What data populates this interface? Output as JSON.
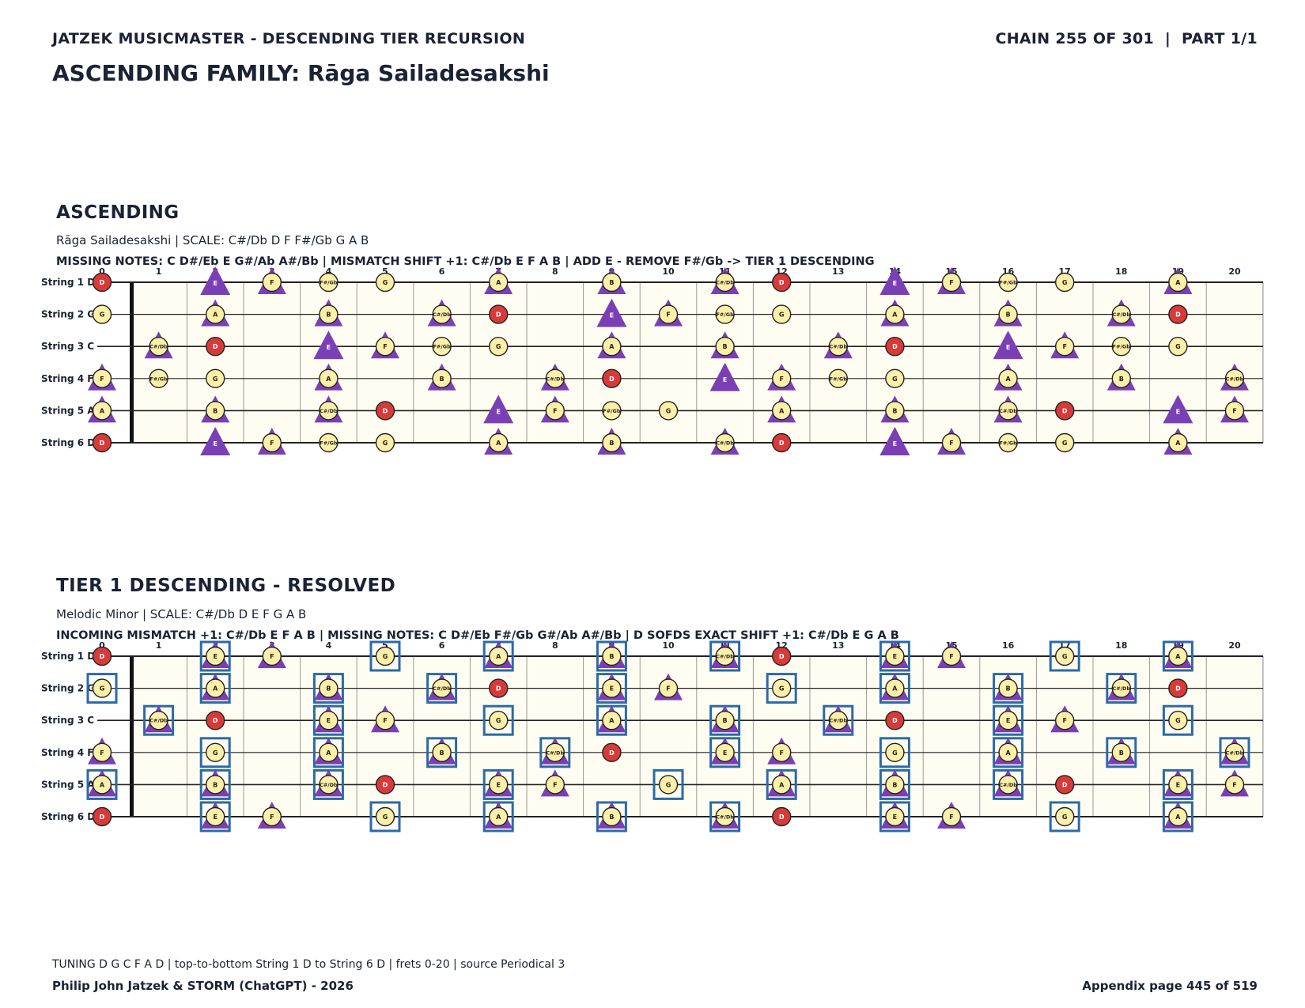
{
  "header": {
    "left": "JATZEK MUSICMASTER - DESCENDING TIER RECURSION",
    "right": "CHAIN 255 OF 301  |  PART 1/1",
    "title": "ASCENDING FAMILY: Rāga Sailadesakshi"
  },
  "strings": [
    "String 1 D",
    "String 2 G",
    "String 3 C",
    "String 4 F",
    "String 5 A",
    "String 6 D"
  ],
  "frets": [
    "0",
    "1",
    "2",
    "3",
    "4",
    "5",
    "6",
    "7",
    "8",
    "9",
    "10",
    "11",
    "12",
    "13",
    "14",
    "15",
    "16",
    "17",
    "18",
    "19",
    "20"
  ],
  "colors": {
    "note_fill": "#fcefa8",
    "root_fill": "#d83a3a",
    "triangle": "#7b3fb5",
    "box": "#2a6aa8",
    "board": "#fffdf2"
  },
  "sections": [
    {
      "title": "ASCENDING",
      "scale_line": "Rāga Sailadesakshi  |  SCALE: C#/Db D F F#/Gb G A B",
      "info_line": "MISSING NOTES: C D#/Eb E G#/Ab A#/Bb  |  MISMATCH SHIFT +1: C#/Db E F A B  |  ADD E - REMOVE F#/Gb -> TIER 1 DESCENDING",
      "rows": [
        [
          "D",
          "",
          "E",
          "F",
          "F#/Gb",
          "G",
          "",
          "A",
          "",
          "B",
          "",
          "C#/Db",
          "D",
          "",
          "E",
          "F",
          "F#/Gb",
          "G",
          "",
          "A",
          ""
        ],
        [
          "G",
          "",
          "A",
          "",
          "B",
          "",
          "C#/Db",
          "D",
          "",
          "E",
          "F",
          "F#/Gb",
          "G",
          "",
          "A",
          "",
          "B",
          "",
          "C#/Db",
          "D",
          ""
        ],
        [
          "",
          "C#/Db",
          "D",
          "",
          "E",
          "F",
          "F#/Gb",
          "G",
          "",
          "A",
          "",
          "B",
          "",
          "C#/Db",
          "D",
          "",
          "E",
          "F",
          "F#/Gb",
          "G",
          ""
        ],
        [
          "F",
          "F#/Gb",
          "G",
          "",
          "A",
          "",
          "B",
          "",
          "C#/Db",
          "D",
          "",
          "E",
          "F",
          "F#/Gb",
          "G",
          "",
          "A",
          "",
          "B",
          "",
          "C#/Db"
        ],
        [
          "A",
          "",
          "B",
          "",
          "C#/Db",
          "D",
          "",
          "E",
          "F",
          "F#/Gb",
          "G",
          "",
          "A",
          "",
          "B",
          "",
          "C#/Db",
          "D",
          "",
          "E",
          "F"
        ],
        [
          "D",
          "",
          "E",
          "F",
          "F#/Gb",
          "G",
          "",
          "A",
          "",
          "B",
          "",
          "C#/Db",
          "D",
          "",
          "E",
          "F",
          "F#/Gb",
          "G",
          "",
          "A",
          ""
        ]
      ],
      "boxed_frets": [
        [],
        [],
        [],
        [],
        [],
        []
      ]
    },
    {
      "title": "TIER 1 DESCENDING - RESOLVED",
      "scale_line": "Melodic Minor  |  SCALE: C#/Db D E F G A B",
      "info_line": "INCOMING MISMATCH +1: C#/Db E F A B  |  MISSING NOTES: C D#/Eb F#/Gb G#/Ab A#/Bb  |  D SOFDS EXACT SHIFT +1: C#/Db E G A B",
      "rows": [
        [
          "D",
          "",
          "E",
          "F",
          "",
          "G",
          "",
          "A",
          "",
          "B",
          "",
          "C#/Db",
          "D",
          "",
          "E",
          "F",
          "",
          "G",
          "",
          "A",
          ""
        ],
        [
          "G",
          "",
          "A",
          "",
          "B",
          "",
          "C#/Db",
          "D",
          "",
          "E",
          "F",
          "",
          "G",
          "",
          "A",
          "",
          "B",
          "",
          "C#/Db",
          "D",
          ""
        ],
        [
          "",
          "C#/Db",
          "D",
          "",
          "E",
          "F",
          "",
          "G",
          "",
          "A",
          "",
          "B",
          "",
          "C#/Db",
          "D",
          "",
          "E",
          "F",
          "",
          "G",
          ""
        ],
        [
          "F",
          "",
          "G",
          "",
          "A",
          "",
          "B",
          "",
          "C#/Db",
          "D",
          "",
          "E",
          "F",
          "",
          "G",
          "",
          "A",
          "",
          "B",
          "",
          "C#/Db"
        ],
        [
          "A",
          "",
          "B",
          "",
          "C#/Db",
          "D",
          "",
          "E",
          "F",
          "",
          "G",
          "",
          "A",
          "",
          "B",
          "",
          "C#/Db",
          "D",
          "",
          "E",
          "F"
        ],
        [
          "D",
          "",
          "E",
          "F",
          "",
          "G",
          "",
          "A",
          "",
          "B",
          "",
          "C#/Db",
          "D",
          "",
          "E",
          "F",
          "",
          "G",
          "",
          "A",
          ""
        ]
      ],
      "boxed_frets": [
        [
          2,
          5,
          7,
          9,
          11,
          14,
          17,
          19
        ],
        [
          0,
          2,
          4,
          6,
          9,
          12,
          14,
          16,
          18
        ],
        [
          1,
          4,
          7,
          9,
          11,
          13,
          16,
          19
        ],
        [
          2,
          4,
          6,
          8,
          11,
          14,
          16,
          18,
          20
        ],
        [
          0,
          2,
          4,
          7,
          10,
          12,
          14,
          16,
          19
        ],
        [
          2,
          5,
          7,
          9,
          11,
          14,
          17,
          19
        ]
      ]
    }
  ],
  "footer": {
    "note": "TUNING D G C F A D | top-to-bottom String 1 D to String 6 D | frets 0-20 | source Periodical 3",
    "left": "Philip John Jatzek & STORM (ChatGPT) - 2026",
    "right": "Appendix page 445 of 519"
  }
}
